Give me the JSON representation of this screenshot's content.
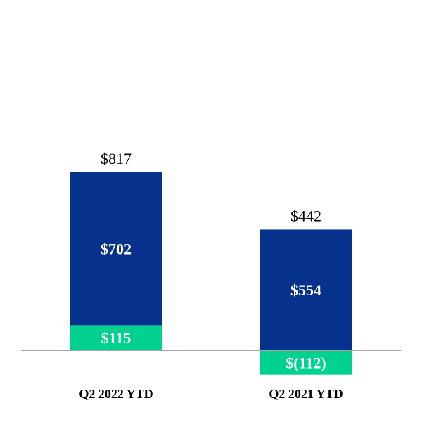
{
  "chart_data": {
    "type": "bar",
    "stacked": true,
    "categories": [
      "Q2 2022 YTD",
      "Q2 2021 YTD"
    ],
    "series": [
      {
        "color": "#00D18F",
        "values": [
          115,
          -112
        ],
        "labels": [
          "$115",
          "$(112)"
        ]
      },
      {
        "color": "#06318C",
        "values": [
          702,
          554
        ],
        "labels": [
          "$702",
          "$554"
        ]
      }
    ],
    "totals": [
      817,
      442
    ],
    "total_labels": [
      "$817",
      "$442"
    ],
    "title": "",
    "xlabel": "",
    "ylabel": "",
    "grid": false,
    "axis_color": "#A6A6A6"
  }
}
